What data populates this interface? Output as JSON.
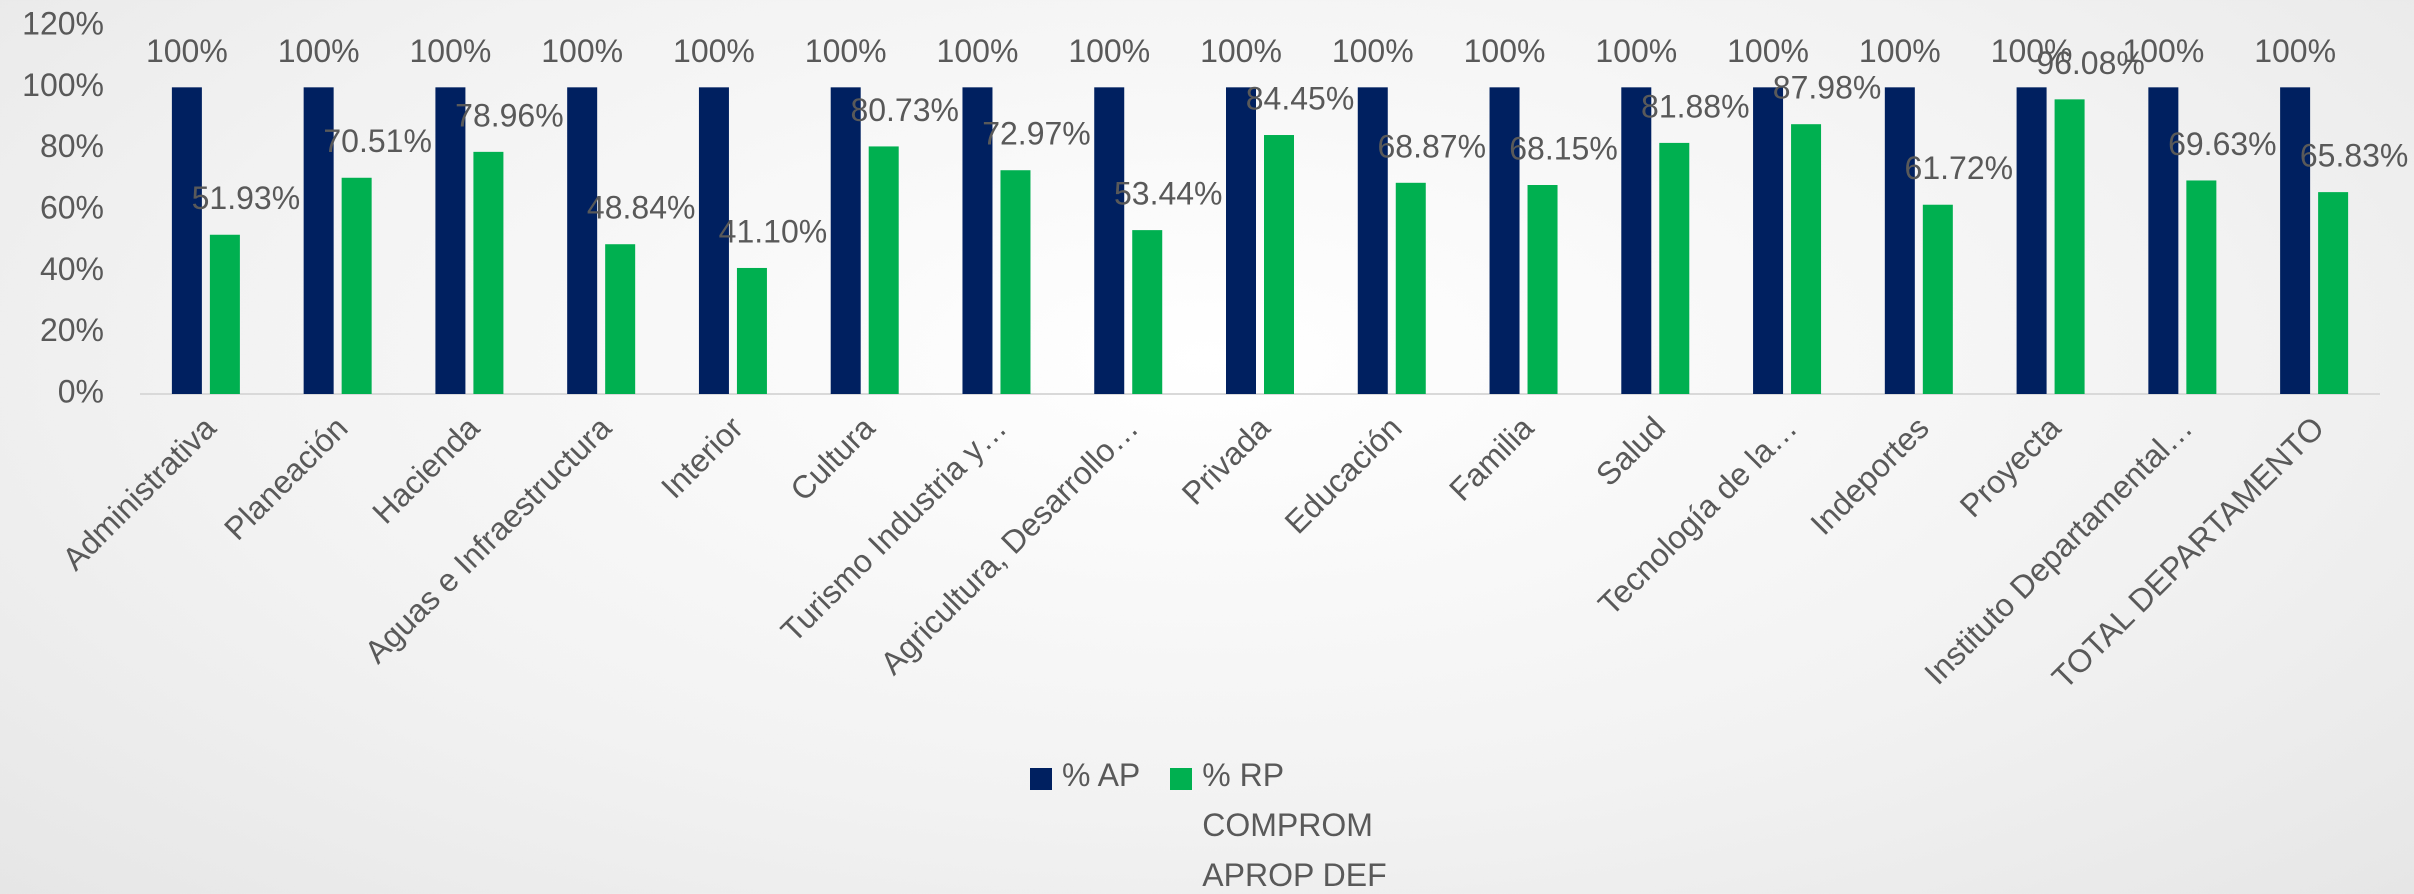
{
  "chart_data": {
    "type": "bar",
    "categories": [
      "Administrativa",
      "Planeación",
      "Hacienda",
      "Aguas e Infraestructura",
      "Interior",
      "Cultura",
      "Turismo Industria y…",
      "Agricultura, Desarrollo…",
      "Privada",
      "Educación",
      "Familia",
      "Salud",
      "Tecnología de la…",
      "Indeportes",
      "Proyecta",
      "Instituto Departamental…",
      "TOTAL DEPARTAMENTO"
    ],
    "series": [
      {
        "name": "% AP",
        "color": "#002060",
        "values": [
          100,
          100,
          100,
          100,
          100,
          100,
          100,
          100,
          100,
          100,
          100,
          100,
          100,
          100,
          100,
          100,
          100
        ],
        "value_labels": [
          "100%",
          "100%",
          "100%",
          "100%",
          "100%",
          "100%",
          "100%",
          "100%",
          "100%",
          "100%",
          "100%",
          "100%",
          "100%",
          "100%",
          "100%",
          "100%",
          "100%"
        ]
      },
      {
        "name": "% RP COMPROM APROP DEF",
        "color": "#00b050",
        "values": [
          51.93,
          70.51,
          78.96,
          48.84,
          41.1,
          80.73,
          72.97,
          53.44,
          84.45,
          68.87,
          68.15,
          81.88,
          87.98,
          61.72,
          96.08,
          69.63,
          65.83
        ],
        "value_labels": [
          "51.93%",
          "70.51%",
          "78.96%",
          "48.84%",
          "41.10%",
          "80.73%",
          "72.97%",
          "53.44%",
          "84.45%",
          "68.87%",
          "68.15%",
          "81.88%",
          "87.98%",
          "61.72%",
          "96.08%",
          "69.63%",
          "65.83%"
        ]
      }
    ],
    "ylim": [
      0,
      120
    ],
    "yticks": [
      {
        "value": 0,
        "label": "0%"
      },
      {
        "value": 20,
        "label": "20%"
      },
      {
        "value": 40,
        "label": "40%"
      },
      {
        "value": 60,
        "label": "60%"
      },
      {
        "value": 80,
        "label": "80%"
      },
      {
        "value": 100,
        "label": "100%"
      },
      {
        "value": 120,
        "label": "120%"
      }
    ],
    "legend": "bottom"
  }
}
